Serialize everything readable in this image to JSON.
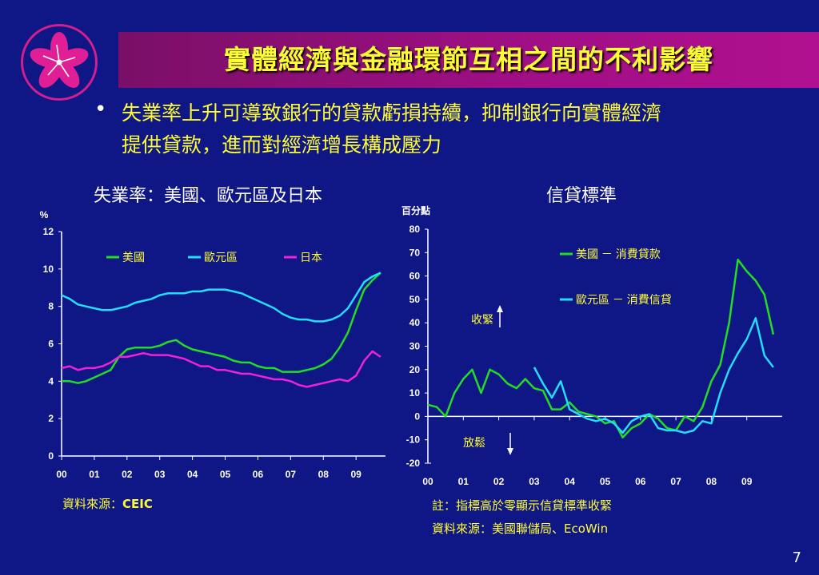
{
  "header": {
    "title": "實體經濟與金融環節互相之間的不利影響"
  },
  "bullet": {
    "line1": "失業率上升可導致銀行的貸款虧損持續，抑制銀行向實體經濟",
    "line2": "提供貸款，進而對經濟增長構成壓力"
  },
  "left_chart": {
    "source_label": "資料來源：",
    "source_name": "CEIC"
  },
  "right_chart": {
    "tighten_label": "收緊",
    "loosen_label": "放鬆",
    "note": "註：指標高於零顯示信貸標準收緊",
    "source": "資料來源：美國聯儲局、EcoWin"
  },
  "page_number": "7",
  "colors": {
    "background": "#0f1786",
    "title_bar": "#a10f85",
    "highlight_text": "#ffff33",
    "series_us": "#22dd22",
    "series_euro": "#22ddff",
    "series_japan": "#ee22dd"
  },
  "chart_data": [
    {
      "type": "line",
      "title": "失業率：美國、歐元區及日本",
      "ylabel": "%",
      "xlabel": "",
      "ylim": [
        0,
        12
      ],
      "yticks": [
        "0",
        "2",
        "4",
        "6",
        "8",
        "10",
        "12"
      ],
      "xticks": [
        "00",
        "01",
        "02",
        "03",
        "04",
        "05",
        "06",
        "07",
        "08",
        "09"
      ],
      "xticks_at": [
        2000,
        2001,
        2002,
        2003,
        2004,
        2005,
        2006,
        2007,
        2008,
        2009
      ],
      "xlim": [
        2000,
        2009.9
      ],
      "legend_position": "top",
      "grid": false,
      "series": [
        {
          "name": "美國",
          "color": "#22dd22",
          "points": [
            [
              2000,
              4.0
            ],
            [
              2000.25,
              4.0
            ],
            [
              2000.5,
              3.9
            ],
            [
              2000.75,
              4.0
            ],
            [
              2001,
              4.2
            ],
            [
              2001.25,
              4.4
            ],
            [
              2001.5,
              4.6
            ],
            [
              2001.75,
              5.3
            ],
            [
              2002,
              5.7
            ],
            [
              2002.25,
              5.8
            ],
            [
              2002.5,
              5.8
            ],
            [
              2002.75,
              5.8
            ],
            [
              2003,
              5.9
            ],
            [
              2003.25,
              6.1
            ],
            [
              2003.5,
              6.2
            ],
            [
              2003.75,
              5.9
            ],
            [
              2004,
              5.7
            ],
            [
              2004.25,
              5.6
            ],
            [
              2004.5,
              5.5
            ],
            [
              2004.75,
              5.4
            ],
            [
              2005,
              5.3
            ],
            [
              2005.25,
              5.1
            ],
            [
              2005.5,
              5.0
            ],
            [
              2005.75,
              5.0
            ],
            [
              2006,
              4.8
            ],
            [
              2006.25,
              4.7
            ],
            [
              2006.5,
              4.7
            ],
            [
              2006.75,
              4.5
            ],
            [
              2007,
              4.5
            ],
            [
              2007.25,
              4.5
            ],
            [
              2007.5,
              4.6
            ],
            [
              2007.75,
              4.7
            ],
            [
              2008,
              4.9
            ],
            [
              2008.25,
              5.2
            ],
            [
              2008.5,
              5.8
            ],
            [
              2008.75,
              6.6
            ],
            [
              2009,
              7.8
            ],
            [
              2009.25,
              8.9
            ],
            [
              2009.5,
              9.4
            ],
            [
              2009.75,
              9.8
            ]
          ]
        },
        {
          "name": "歐元區",
          "color": "#22ddff",
          "points": [
            [
              2000,
              8.6
            ],
            [
              2000.25,
              8.4
            ],
            [
              2000.5,
              8.1
            ],
            [
              2000.75,
              8.0
            ],
            [
              2001,
              7.9
            ],
            [
              2001.25,
              7.8
            ],
            [
              2001.5,
              7.8
            ],
            [
              2001.75,
              7.9
            ],
            [
              2002,
              8.0
            ],
            [
              2002.25,
              8.2
            ],
            [
              2002.5,
              8.3
            ],
            [
              2002.75,
              8.4
            ],
            [
              2003,
              8.6
            ],
            [
              2003.25,
              8.7
            ],
            [
              2003.5,
              8.7
            ],
            [
              2003.75,
              8.7
            ],
            [
              2004,
              8.8
            ],
            [
              2004.25,
              8.8
            ],
            [
              2004.5,
              8.9
            ],
            [
              2004.75,
              8.9
            ],
            [
              2005,
              8.9
            ],
            [
              2005.25,
              8.8
            ],
            [
              2005.5,
              8.7
            ],
            [
              2005.75,
              8.5
            ],
            [
              2006,
              8.3
            ],
            [
              2006.25,
              8.1
            ],
            [
              2006.5,
              7.9
            ],
            [
              2006.75,
              7.6
            ],
            [
              2007,
              7.4
            ],
            [
              2007.25,
              7.3
            ],
            [
              2007.5,
              7.3
            ],
            [
              2007.75,
              7.2
            ],
            [
              2008,
              7.2
            ],
            [
              2008.25,
              7.3
            ],
            [
              2008.5,
              7.5
            ],
            [
              2008.75,
              7.9
            ],
            [
              2009,
              8.6
            ],
            [
              2009.25,
              9.3
            ],
            [
              2009.5,
              9.6
            ],
            [
              2009.75,
              9.8
            ]
          ]
        },
        {
          "name": "日本",
          "color": "#ee22dd",
          "points": [
            [
              2000,
              4.7
            ],
            [
              2000.25,
              4.8
            ],
            [
              2000.5,
              4.6
            ],
            [
              2000.75,
              4.7
            ],
            [
              2001,
              4.7
            ],
            [
              2001.25,
              4.8
            ],
            [
              2001.5,
              5.0
            ],
            [
              2001.75,
              5.3
            ],
            [
              2002,
              5.3
            ],
            [
              2002.25,
              5.4
            ],
            [
              2002.5,
              5.5
            ],
            [
              2002.75,
              5.4
            ],
            [
              2003,
              5.4
            ],
            [
              2003.25,
              5.4
            ],
            [
              2003.5,
              5.3
            ],
            [
              2003.75,
              5.2
            ],
            [
              2004,
              5.0
            ],
            [
              2004.25,
              4.8
            ],
            [
              2004.5,
              4.8
            ],
            [
              2004.75,
              4.6
            ],
            [
              2005,
              4.6
            ],
            [
              2005.25,
              4.5
            ],
            [
              2005.5,
              4.4
            ],
            [
              2005.75,
              4.4
            ],
            [
              2006,
              4.3
            ],
            [
              2006.25,
              4.2
            ],
            [
              2006.5,
              4.1
            ],
            [
              2006.75,
              4.1
            ],
            [
              2007,
              4.0
            ],
            [
              2007.25,
              3.8
            ],
            [
              2007.5,
              3.7
            ],
            [
              2007.75,
              3.8
            ],
            [
              2008,
              3.9
            ],
            [
              2008.25,
              4.0
            ],
            [
              2008.5,
              4.1
            ],
            [
              2008.75,
              4.0
            ],
            [
              2009,
              4.3
            ],
            [
              2009.25,
              5.1
            ],
            [
              2009.5,
              5.6
            ],
            [
              2009.75,
              5.3
            ]
          ]
        }
      ]
    },
    {
      "type": "line",
      "title": "信貸標準",
      "ylabel": "百分點",
      "xlabel": "",
      "ylim": [
        -20,
        80
      ],
      "yticks": [
        "-20",
        "-10",
        "0",
        "10",
        "20",
        "30",
        "40",
        "50",
        "60",
        "70",
        "80"
      ],
      "xticks": [
        "00",
        "01",
        "02",
        "03",
        "04",
        "05",
        "06",
        "07",
        "08",
        "09"
      ],
      "xticks_at": [
        2000,
        2001,
        2002,
        2003,
        2004,
        2005,
        2006,
        2007,
        2008,
        2009
      ],
      "xlim": [
        2000,
        2010
      ],
      "legend_position": "top-right",
      "grid": false,
      "series": [
        {
          "name": "美國 － 消費貸款",
          "color": "#22dd22",
          "points": [
            [
              2000,
              5
            ],
            [
              2000.25,
              4
            ],
            [
              2000.5,
              0
            ],
            [
              2000.75,
              10
            ],
            [
              2001,
              16
            ],
            [
              2001.25,
              20
            ],
            [
              2001.5,
              10
            ],
            [
              2001.75,
              20
            ],
            [
              2002,
              18
            ],
            [
              2002.25,
              14
            ],
            [
              2002.5,
              12
            ],
            [
              2002.75,
              16
            ],
            [
              2003,
              12
            ],
            [
              2003.25,
              11
            ],
            [
              2003.5,
              3
            ],
            [
              2003.75,
              3
            ],
            [
              2004,
              6
            ],
            [
              2004.25,
              2
            ],
            [
              2004.5,
              1
            ],
            [
              2004.75,
              0
            ],
            [
              2005,
              -3
            ],
            [
              2005.25,
              -2
            ],
            [
              2005.5,
              -9
            ],
            [
              2005.75,
              -5
            ],
            [
              2006,
              -3
            ],
            [
              2006.25,
              1
            ],
            [
              2006.5,
              -1
            ],
            [
              2006.75,
              -5
            ],
            [
              2007,
              -6
            ],
            [
              2007.25,
              0
            ],
            [
              2007.5,
              -2
            ],
            [
              2007.75,
              4
            ],
            [
              2008,
              15
            ],
            [
              2008.25,
              22
            ],
            [
              2008.5,
              40
            ],
            [
              2008.75,
              67
            ],
            [
              2009,
              62
            ],
            [
              2009.25,
              58
            ],
            [
              2009.5,
              52
            ],
            [
              2009.75,
              35
            ]
          ]
        },
        {
          "name": "歐元區 － 消費信貸",
          "color": "#22ddff",
          "points": [
            [
              2003,
              21
            ],
            [
              2003.25,
              14
            ],
            [
              2003.5,
              8
            ],
            [
              2003.75,
              15
            ],
            [
              2004,
              3
            ],
            [
              2004.25,
              1
            ],
            [
              2004.5,
              -1
            ],
            [
              2004.75,
              -2
            ],
            [
              2005,
              -1
            ],
            [
              2005.25,
              -3
            ],
            [
              2005.5,
              -7
            ],
            [
              2005.75,
              -2
            ],
            [
              2006,
              0
            ],
            [
              2006.25,
              1
            ],
            [
              2006.5,
              -5
            ],
            [
              2006.75,
              -6
            ],
            [
              2007,
              -6
            ],
            [
              2007.25,
              -7
            ],
            [
              2007.5,
              -6
            ],
            [
              2007.75,
              -2
            ],
            [
              2008,
              -3
            ],
            [
              2008.25,
              10
            ],
            [
              2008.5,
              20
            ],
            [
              2008.75,
              27
            ],
            [
              2009,
              33
            ],
            [
              2009.25,
              42
            ],
            [
              2009.5,
              26
            ],
            [
              2009.75,
              21
            ]
          ]
        }
      ]
    }
  ]
}
